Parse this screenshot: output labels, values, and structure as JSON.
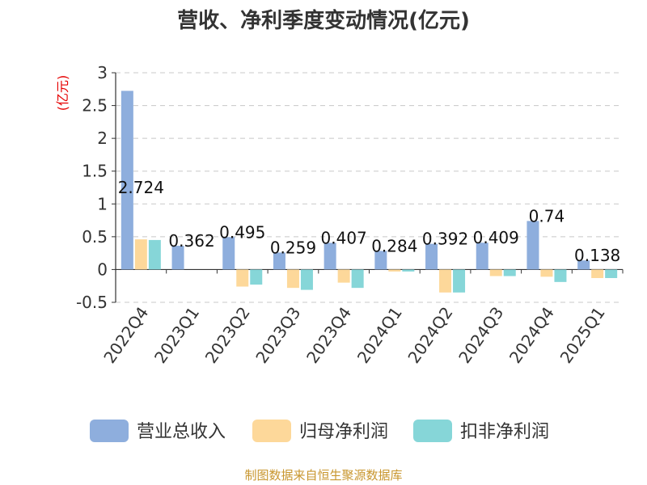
{
  "chart_data": {
    "type": "bar",
    "title": "营收、净利季度变动情况(亿元)",
    "unit_label": "(亿元)",
    "categories": [
      "2022Q4",
      "2023Q1",
      "2023Q2",
      "2023Q3",
      "2023Q4",
      "2024Q1",
      "2024Q2",
      "2024Q3",
      "2024Q4",
      "2025Q1"
    ],
    "series": [
      {
        "name": "营业总收入",
        "color": "#8eaedd",
        "values": [
          2.724,
          0.362,
          0.495,
          0.259,
          0.407,
          0.284,
          0.392,
          0.409,
          0.74,
          0.138
        ],
        "labels": [
          "2.724",
          "0.362",
          "0.495",
          "0.259",
          "0.407",
          "0.284",
          "0.392",
          "0.409",
          "0.74",
          "0.138"
        ]
      },
      {
        "name": "归母净利润",
        "color": "#fdd89a",
        "values": [
          0.46,
          0.0,
          -0.26,
          -0.28,
          -0.2,
          -0.03,
          -0.35,
          -0.1,
          -0.11,
          -0.13
        ]
      },
      {
        "name": "扣非净利润",
        "color": "#86d6d8",
        "values": [
          0.45,
          0.0,
          -0.23,
          -0.31,
          -0.28,
          -0.03,
          -0.35,
          -0.1,
          -0.19,
          -0.13
        ]
      }
    ],
    "yticks": [
      "3",
      "2.5",
      "2",
      "1.5",
      "1",
      "0.5",
      "0",
      "-0.5"
    ],
    "ylim": [
      -0.5,
      3
    ],
    "grid": true,
    "legend_position": "bottom"
  },
  "source_text": "制图数据来自恒生聚源数据库"
}
